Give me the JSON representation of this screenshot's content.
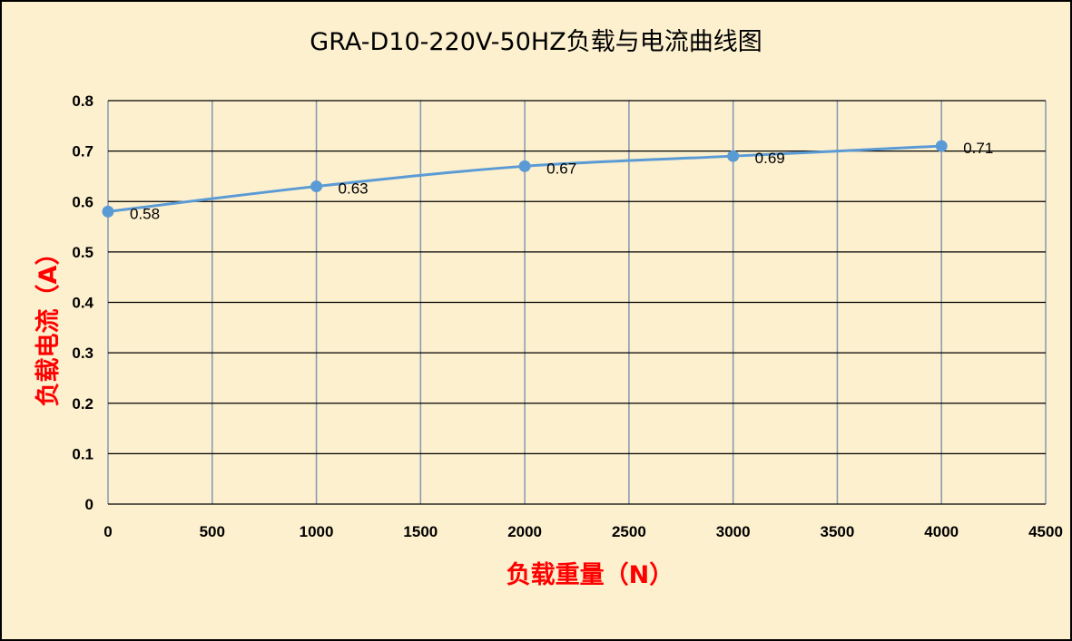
{
  "chart_data": {
    "type": "line",
    "title": "GRA-D10-220V-50HZ负载与电流曲线图",
    "xlabel": "负载重量（N）",
    "ylabel": "负载电流（A）",
    "xlim": [
      0,
      4500
    ],
    "ylim": [
      0,
      0.8
    ],
    "x_ticks": [
      "0",
      "500",
      "1000",
      "1500",
      "2000",
      "2500",
      "3000",
      "3500",
      "4000",
      "4500"
    ],
    "y_ticks": [
      "0",
      "0.1",
      "0.2",
      "0.3",
      "0.4",
      "0.5",
      "0.6",
      "0.7",
      "0.8"
    ],
    "grid": true,
    "legend": "none",
    "series": [
      {
        "x": [
          0,
          1000,
          2000,
          3000,
          4000
        ],
        "values": [
          0.58,
          0.63,
          0.67,
          0.69,
          0.71
        ],
        "labels": [
          "0.58",
          "0.63",
          "0.67",
          "0.69",
          "0.71"
        ],
        "color": "#5b9bd5"
      }
    ],
    "colors": {
      "background": "#fdf0cf",
      "axis_title": "#ff0000",
      "vertical_grid": "#8497b0",
      "horizontal_grid": "#000000"
    }
  }
}
